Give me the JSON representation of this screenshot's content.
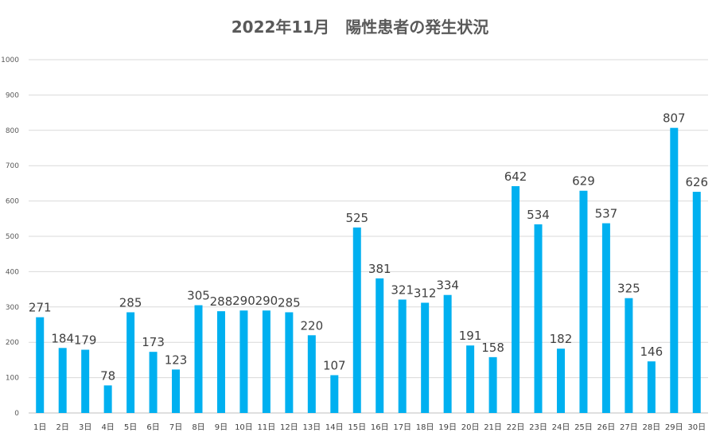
{
  "chart_data": {
    "type": "bar",
    "title": "2022年11月　陽性患者の発生状況",
    "xlabel": "",
    "ylabel": "",
    "ylim": [
      0,
      1000
    ],
    "y_ticks": [
      0,
      100,
      200,
      300,
      400,
      500,
      600,
      700,
      800,
      900,
      1000
    ],
    "grid": true,
    "legend": "none",
    "categories": [
      "1日",
      "2日",
      "3日",
      "4日",
      "5日",
      "6日",
      "7日",
      "8日",
      "9日",
      "10日",
      "11日",
      "12日",
      "13日",
      "14日",
      "15日",
      "16日",
      "17日",
      "18日",
      "19日",
      "20日",
      "21日",
      "22日",
      "23日",
      "24日",
      "25日",
      "26日",
      "27日",
      "28日",
      "29日",
      "30日"
    ],
    "values": [
      271,
      184,
      179,
      78,
      285,
      173,
      123,
      305,
      288,
      290,
      290,
      285,
      220,
      107,
      525,
      381,
      321,
      312,
      334,
      191,
      158,
      642,
      534,
      182,
      629,
      537,
      325,
      146,
      807,
      626
    ],
    "bar_color": "#00b0f0"
  }
}
